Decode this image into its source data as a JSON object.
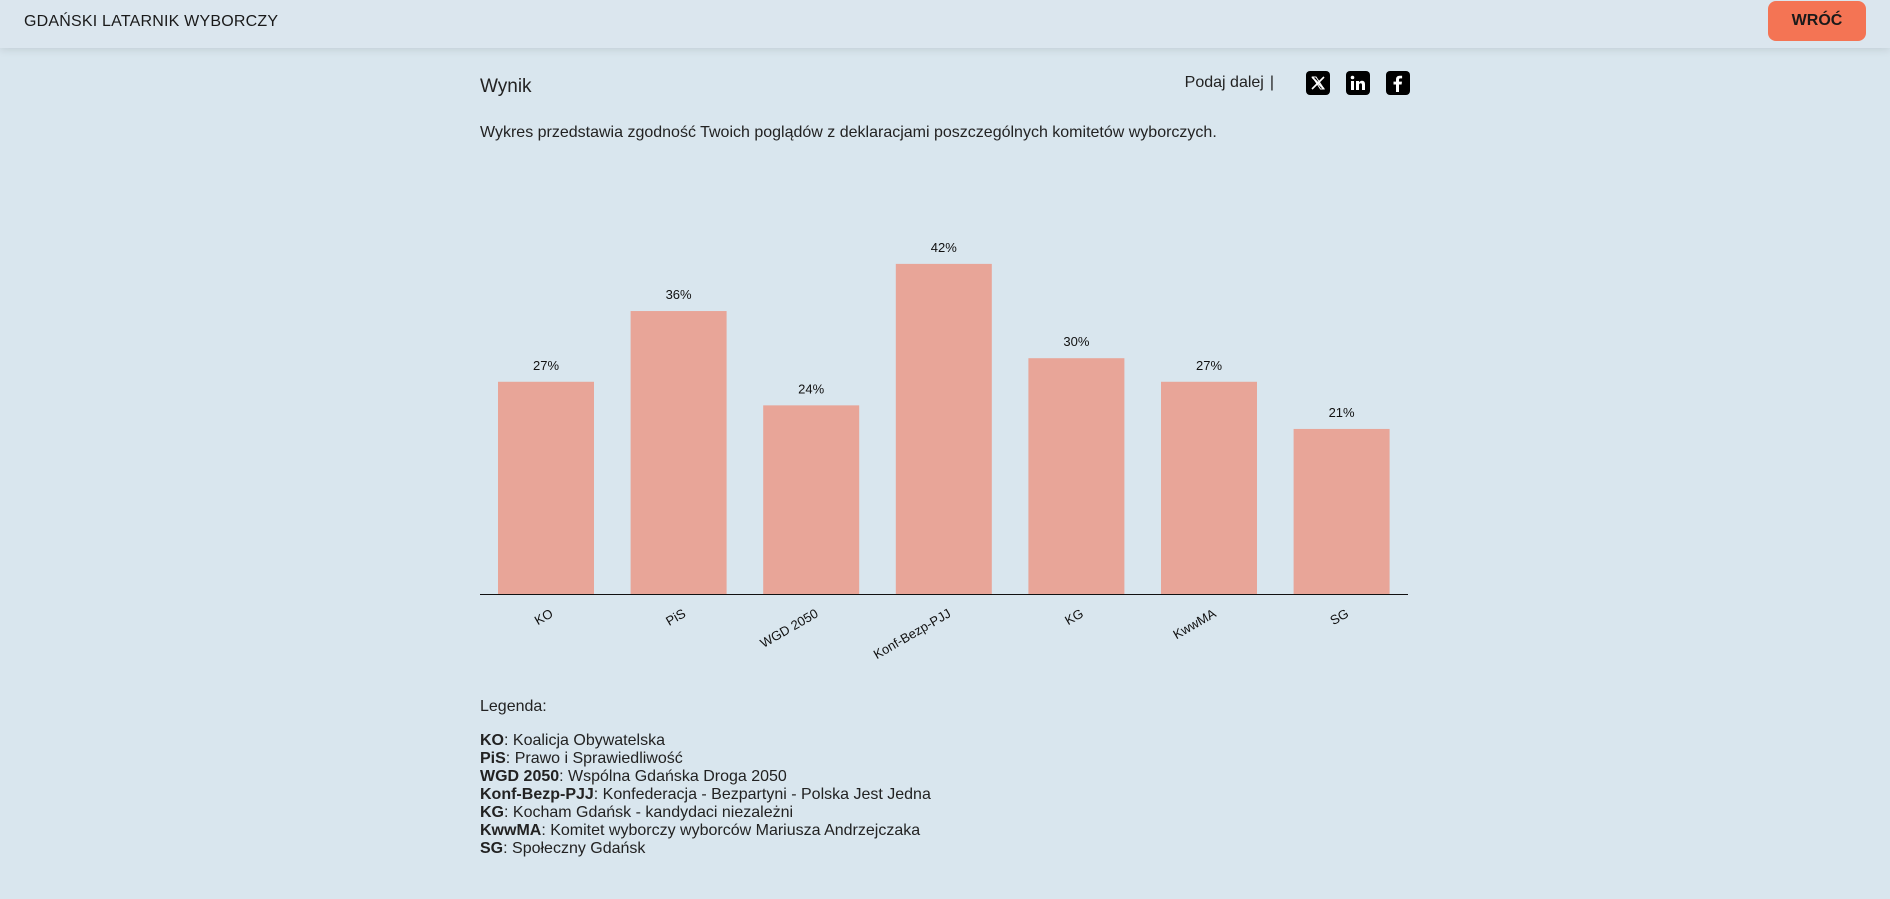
{
  "header": {
    "brand": "GDAŃSKI LATARNIK WYBORCZY",
    "back_label": "WRÓĆ"
  },
  "result": {
    "title": "Wynik",
    "share_label": "Podaj dalej",
    "share_separator": "|",
    "description": "Wykres przedstawia zgodność Twoich poglądów z deklaracjami poszczególnych komitetów wyborczych."
  },
  "share_icons": [
    "x-icon",
    "linkedin-icon",
    "facebook-icon"
  ],
  "colors": {
    "bar": "#e8a598",
    "accent_button": "#f47454",
    "background": "#d9e6ee"
  },
  "chart_data": {
    "type": "bar",
    "categories": [
      "KO",
      "PiS",
      "WGD 2050",
      "Konf-Bezp-PJJ",
      "KG",
      "KwwMA",
      "SG"
    ],
    "values": [
      27,
      36,
      24,
      42,
      30,
      27,
      21
    ],
    "value_labels": [
      "27%",
      "36%",
      "24%",
      "42%",
      "30%",
      "27%",
      "21%"
    ],
    "ylim": [
      0,
      45
    ],
    "grid": false,
    "legend": "below"
  },
  "legend": {
    "title": "Legenda:",
    "items": [
      {
        "abbr": "KO",
        "name": ": Koalicja Obywatelska"
      },
      {
        "abbr": "PiS",
        "name": ": Prawo i Sprawiedliwość"
      },
      {
        "abbr": "WGD 2050",
        "name": ": Wspólna Gdańska Droga 2050"
      },
      {
        "abbr": "Konf-Bezp-PJJ",
        "name": ": Konfederacja - Bezpartyni - Polska Jest Jedna"
      },
      {
        "abbr": "KG",
        "name": ": Kocham Gdańsk - kandydaci niezależni"
      },
      {
        "abbr": "KwwMA",
        "name": ": Komitet wyborczy wyborców Mariusza Andrzejczaka"
      },
      {
        "abbr": "SG",
        "name": ": Społeczny Gdańsk"
      }
    ]
  }
}
